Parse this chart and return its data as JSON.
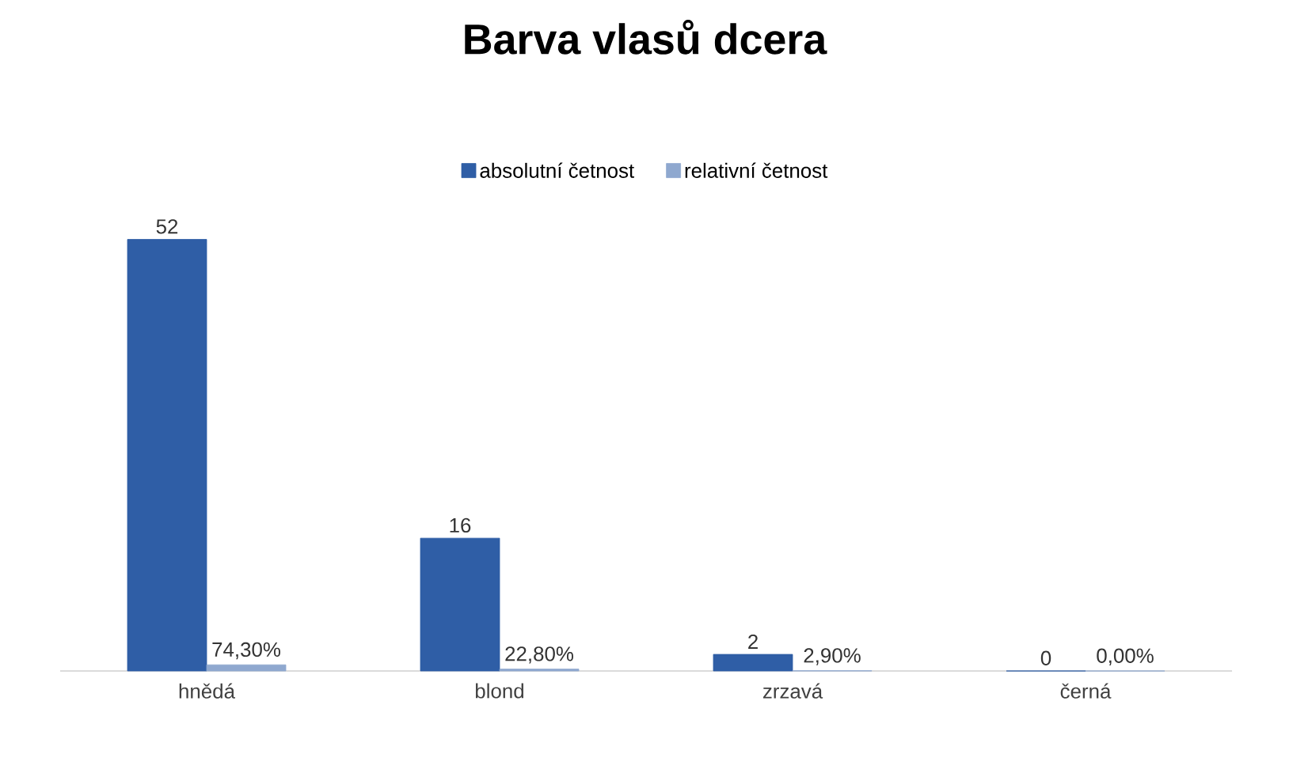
{
  "chart_data": {
    "type": "bar",
    "title": "Barva vlasů dcera",
    "categories": [
      "hnědá",
      "blond",
      "zrzavá",
      "černá"
    ],
    "legend": "top",
    "series": [
      {
        "name": "absolutní četnost",
        "color": "#2f5ea6",
        "values": [
          52,
          16,
          2,
          0
        ],
        "value_labels": [
          "52",
          "16",
          "2",
          "0"
        ]
      },
      {
        "name": "relativní četnost",
        "color": "#8fa8cf",
        "values": [
          0.743,
          0.228,
          0.029,
          0
        ],
        "value_labels": [
          "74,30%",
          "22,80%",
          "2,90%",
          "0,00%"
        ]
      }
    ]
  }
}
